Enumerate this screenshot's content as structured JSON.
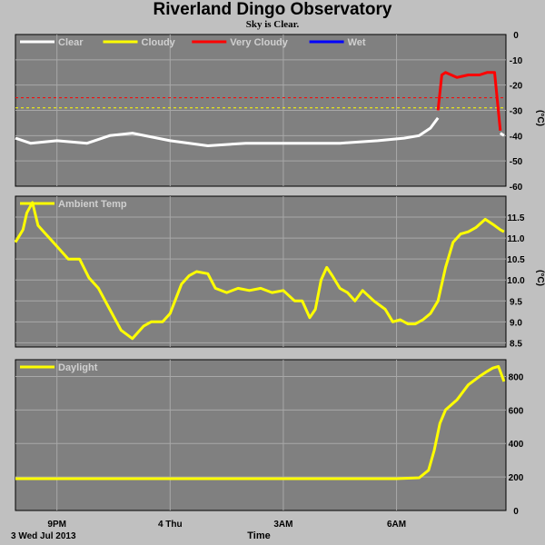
{
  "page": {
    "title": "Riverland Dingo Observatory",
    "subtitle": "Sky is Clear."
  },
  "chart_data": [
    {
      "type": "line",
      "panel": "sky",
      "unit": "(°C)",
      "ylim": [
        -60,
        0
      ],
      "yticks": [
        0,
        -10,
        -20,
        -30,
        -40,
        -50,
        -60
      ],
      "grid": true,
      "legend_position": "top-left",
      "legend": [
        {
          "name": "Clear",
          "color": "#ffffff"
        },
        {
          "name": "Cloudy",
          "color": "#ffff00"
        },
        {
          "name": "Very Cloudy",
          "color": "#ff0000"
        },
        {
          "name": "Wet",
          "color": "#0000ff"
        }
      ],
      "thresholds": [
        {
          "name": "Cloudy",
          "value": -29,
          "color": "#ffff00"
        },
        {
          "name": "Very Cloudy",
          "value": -25,
          "color": "#ff0000"
        }
      ],
      "series": [
        {
          "name": "Clear",
          "color": "#ffffff",
          "x": [
            19.9,
            20.3,
            21.0,
            21.8,
            22.4,
            23.0,
            24.0,
            25.0,
            26.0,
            27.0,
            27.7,
            28.5,
            29.5,
            30.2,
            30.6,
            30.9,
            31.1
          ],
          "y": [
            -41,
            -43,
            -42,
            -43,
            -40,
            -39,
            -42,
            -44,
            -43,
            -43,
            -43,
            -43,
            -42,
            -41,
            -40,
            -37,
            -33
          ]
        },
        {
          "name": "Very Cloudy",
          "color": "#ff0000",
          "x": [
            31.1,
            31.2,
            31.3,
            31.6,
            31.9,
            32.2,
            32.4,
            32.6,
            32.75
          ],
          "y": [
            -30,
            -16,
            -15,
            -17,
            -16,
            -16,
            -15,
            -15,
            -38
          ]
        },
        {
          "name": "Clear",
          "color": "#ffffff",
          "x": [
            32.75,
            32.85
          ],
          "y": [
            -39,
            -40
          ]
        }
      ]
    },
    {
      "type": "line",
      "panel": "ambient",
      "unit": "(°C)",
      "ylim": [
        8.4,
        12.0
      ],
      "yticks": [
        8.5,
        9.0,
        9.5,
        10.0,
        10.5,
        11.0,
        11.5
      ],
      "ytick_labels": [
        "8.5",
        "9.0",
        "9.5",
        "10.0",
        "10.5",
        "11.0",
        "11.5"
      ],
      "grid": true,
      "legend_position": "top-left",
      "legend": [
        {
          "name": "Ambient Temp",
          "color": "#ffff00"
        }
      ],
      "series": [
        {
          "name": "Ambient Temp",
          "color": "#ffff00",
          "x": [
            19.9,
            20.1,
            20.2,
            20.35,
            20.5,
            20.75,
            21.0,
            21.3,
            21.6,
            21.85,
            22.1,
            22.4,
            22.7,
            23.0,
            23.3,
            23.5,
            23.8,
            24.0,
            24.3,
            24.5,
            24.7,
            25.0,
            25.2,
            25.5,
            25.8,
            26.1,
            26.4,
            26.7,
            27.0,
            27.3,
            27.5,
            27.7,
            27.85,
            28.0,
            28.15,
            28.3,
            28.5,
            28.7,
            28.9,
            29.1,
            29.4,
            29.7,
            29.9,
            30.1,
            30.3,
            30.5,
            30.7,
            30.9,
            31.1,
            31.3,
            31.5,
            31.7,
            31.9,
            32.1,
            32.35,
            32.6,
            32.75,
            32.85
          ],
          "y": [
            10.9,
            11.2,
            11.6,
            11.85,
            11.3,
            11.05,
            10.8,
            10.5,
            10.5,
            10.05,
            9.8,
            9.3,
            8.8,
            8.6,
            8.9,
            9.0,
            9.0,
            9.2,
            9.9,
            10.1,
            10.2,
            10.15,
            9.8,
            9.7,
            9.8,
            9.75,
            9.8,
            9.7,
            9.75,
            9.5,
            9.5,
            9.1,
            9.3,
            10.0,
            10.3,
            10.1,
            9.8,
            9.7,
            9.5,
            9.75,
            9.5,
            9.3,
            9.0,
            9.05,
            8.95,
            8.95,
            9.05,
            9.2,
            9.5,
            10.3,
            10.9,
            11.1,
            11.15,
            11.25,
            11.45,
            11.3,
            11.2,
            11.15
          ]
        }
      ]
    },
    {
      "type": "line",
      "panel": "daylight",
      "ylim": [
        0,
        900
      ],
      "yticks": [
        0,
        200,
        400,
        600,
        800
      ],
      "grid": true,
      "legend_position": "top-left",
      "legend": [
        {
          "name": "Daylight",
          "color": "#ffff00"
        }
      ],
      "series": [
        {
          "name": "Daylight",
          "color": "#ffff00",
          "x": [
            19.9,
            21.0,
            22.0,
            23.0,
            24.0,
            25.0,
            26.0,
            27.0,
            28.0,
            29.0,
            30.0,
            30.6,
            30.85,
            31.0,
            31.15,
            31.3,
            31.6,
            31.9,
            32.2,
            32.4,
            32.55,
            32.7,
            32.75,
            32.85
          ],
          "y": [
            190,
            190,
            190,
            190,
            190,
            190,
            190,
            190,
            190,
            190,
            190,
            195,
            240,
            360,
            520,
            600,
            660,
            750,
            800,
            830,
            850,
            860,
            830,
            770
          ]
        }
      ]
    }
  ],
  "x_axis": {
    "date_label": "3 Wed Jul 2013",
    "label": "Time",
    "ticks": [
      {
        "x": 21,
        "label": "9PM"
      },
      {
        "x": 24,
        "label": "4 Thu"
      },
      {
        "x": 27,
        "label": "3AM"
      },
      {
        "x": 30,
        "label": "6AM"
      }
    ],
    "range_hours": [
      19.9,
      32.9
    ]
  }
}
